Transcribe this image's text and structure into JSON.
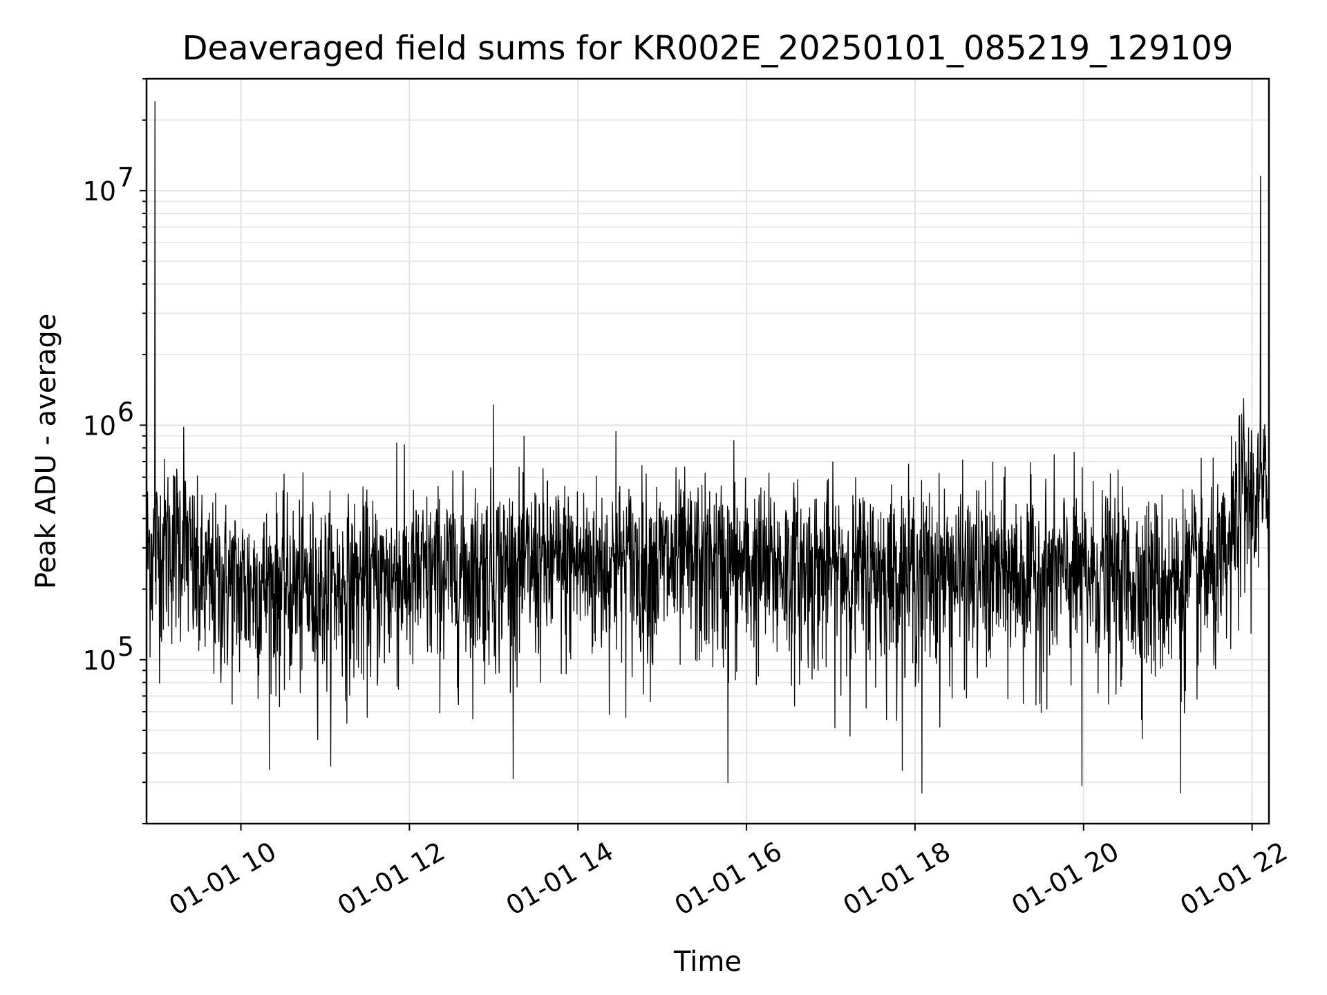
{
  "chart_data": {
    "type": "line",
    "title": "Deaveraged field sums for KR002E_20250101_085219_129109",
    "xlabel": "Time",
    "ylabel": "Peak ADU - average",
    "y_scale": "log",
    "ylim": [
      20000,
      30000000
    ],
    "x_unit": "hours",
    "xlim": [
      8.88,
      22.2
    ],
    "x_ticks": [
      {
        "value": 10,
        "label": "01-01 10"
      },
      {
        "value": 12,
        "label": "01-01 12"
      },
      {
        "value": 14,
        "label": "01-01 14"
      },
      {
        "value": 16,
        "label": "01-01 16"
      },
      {
        "value": 18,
        "label": "01-01 18"
      },
      {
        "value": 20,
        "label": "01-01 20"
      },
      {
        "value": 22,
        "label": "01-01 22"
      }
    ],
    "y_ticks": [
      {
        "value": 100000,
        "base": "10",
        "exp": "5"
      },
      {
        "value": 1000000,
        "base": "10",
        "exp": "6"
      },
      {
        "value": 10000000,
        "base": "10",
        "exp": "7"
      }
    ],
    "grid": true,
    "line_color": "#000000",
    "grid_color": "#e3e3e3",
    "series": [
      {
        "name": "Peak ADU - average",
        "baseline_profile": [
          [
            8.88,
            300000
          ],
          [
            9.3,
            350000
          ],
          [
            9.5,
            220000
          ],
          [
            11,
            210000
          ],
          [
            12,
            230000
          ],
          [
            13,
            260000
          ],
          [
            15,
            265000
          ],
          [
            17,
            250000
          ],
          [
            19,
            240000
          ],
          [
            20,
            240000
          ],
          [
            21,
            220000
          ],
          [
            21.7,
            250000
          ],
          [
            21.85,
            500000
          ],
          [
            22.2,
            520000
          ]
        ],
        "noise_sigma_dex": 0.17,
        "sample_count": 3200,
        "spikes": [
          {
            "x": 8.98,
            "y": 24000000
          },
          {
            "x": 9.32,
            "y": 980000
          },
          {
            "x": 13.0,
            "y": 1220000
          },
          {
            "x": 14.45,
            "y": 940000
          },
          {
            "x": 15.85,
            "y": 860000
          },
          {
            "x": 11.85,
            "y": 840000
          },
          {
            "x": 21.9,
            "y": 1300000
          },
          {
            "x": 22.1,
            "y": 11500000
          },
          {
            "x": 18.08,
            "y": 27000
          },
          {
            "x": 19.98,
            "y": 29000
          },
          {
            "x": 21.15,
            "y": 27000
          },
          {
            "x": 15.78,
            "y": 30000
          }
        ]
      }
    ]
  }
}
